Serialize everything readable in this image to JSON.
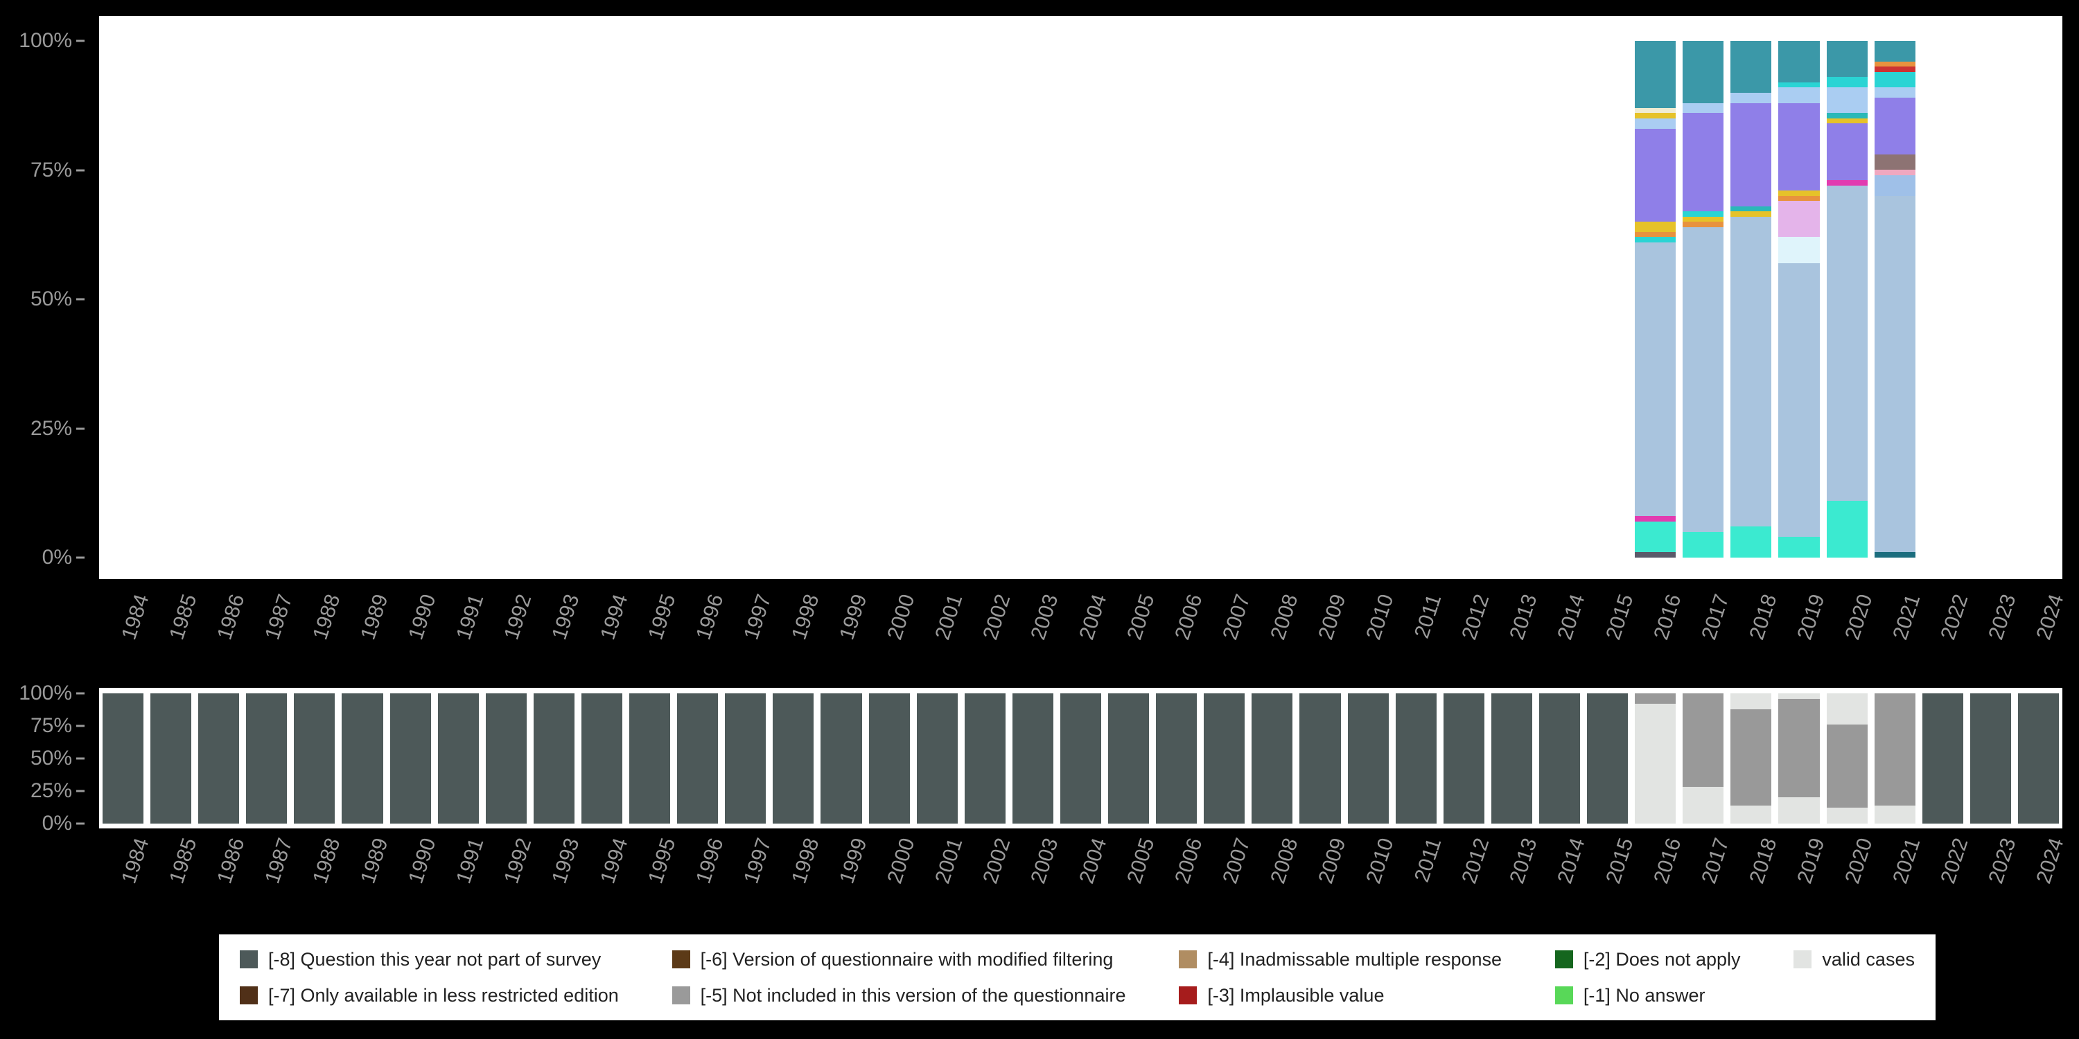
{
  "page": {
    "background": "#000000"
  },
  "chart_data": [
    {
      "type": "bar",
      "stacked": true,
      "units": "percent",
      "ylim": [
        0,
        100
      ],
      "yticks": [
        "100%",
        "75%",
        "50%",
        "25%",
        "0%"
      ],
      "grid": false,
      "segment_order": "top-to-bottom",
      "x": [
        "1984",
        "1985",
        "1986",
        "1987",
        "1988",
        "1989",
        "1990",
        "1991",
        "1992",
        "1993",
        "1994",
        "1995",
        "1996",
        "1997",
        "1998",
        "1999",
        "2000",
        "2001",
        "2002",
        "2003",
        "2004",
        "2005",
        "2006",
        "2007",
        "2008",
        "2009",
        "2010",
        "2011",
        "2012",
        "2013",
        "2014",
        "2015",
        "2016",
        "2017",
        "2018",
        "2019",
        "2020",
        "2021",
        "2022",
        "2023",
        "2024"
      ],
      "bars": {
        "2016": [
          {
            "color": "#3b98a8",
            "value": 13
          },
          {
            "color": "#f0ecd2",
            "value": 1
          },
          {
            "color": "#e6c229",
            "value": 1
          },
          {
            "color": "#aacdf2",
            "value": 2
          },
          {
            "color": "#8f7fe8",
            "value": 18
          },
          {
            "color": "#e6c229",
            "value": 2
          },
          {
            "color": "#e8923e",
            "value": 1
          },
          {
            "color": "#2ad4d4",
            "value": 1
          },
          {
            "color": "#a9c4de",
            "value": 53
          },
          {
            "color": "#e23bb0",
            "value": 1
          },
          {
            "color": "#3bead0",
            "value": 6
          },
          {
            "color": "#5a5a6a",
            "value": 1
          }
        ],
        "2017": [
          {
            "color": "#3b98a8",
            "value": 12
          },
          {
            "color": "#aacdf2",
            "value": 2
          },
          {
            "color": "#8f7fe8",
            "value": 19
          },
          {
            "color": "#2ad4d4",
            "value": 1
          },
          {
            "color": "#e6c229",
            "value": 1
          },
          {
            "color": "#e8923e",
            "value": 1
          },
          {
            "color": "#a9c4de",
            "value": 59
          },
          {
            "color": "#3bead0",
            "value": 5
          }
        ],
        "2018": [
          {
            "color": "#3b98a8",
            "value": 10
          },
          {
            "color": "#aacdf2",
            "value": 2
          },
          {
            "color": "#8f7fe8",
            "value": 20
          },
          {
            "color": "#2ab8b8",
            "value": 1
          },
          {
            "color": "#e6c229",
            "value": 1
          },
          {
            "color": "#a9c4de",
            "value": 60
          },
          {
            "color": "#3bead0",
            "value": 6
          }
        ],
        "2019": [
          {
            "color": "#3b98a8",
            "value": 8
          },
          {
            "color": "#2ad4d4",
            "value": 1
          },
          {
            "color": "#aacdf2",
            "value": 3
          },
          {
            "color": "#8f7fe8",
            "value": 17
          },
          {
            "color": "#e6c229",
            "value": 1
          },
          {
            "color": "#e8923e",
            "value": 1
          },
          {
            "color": "#e4b4ea",
            "value": 7
          },
          {
            "color": "#dff4fb",
            "value": 5
          },
          {
            "color": "#a9c4de",
            "value": 53
          },
          {
            "color": "#3bead0",
            "value": 4
          }
        ],
        "2020": [
          {
            "color": "#3b98a8",
            "value": 7
          },
          {
            "color": "#2ad4d4",
            "value": 2
          },
          {
            "color": "#aacdf2",
            "value": 5
          },
          {
            "color": "#2ab8b8",
            "value": 1
          },
          {
            "color": "#e6c229",
            "value": 1
          },
          {
            "color": "#8f7fe8",
            "value": 11
          },
          {
            "color": "#e23bb0",
            "value": 1
          },
          {
            "color": "#a9c4de",
            "value": 61
          },
          {
            "color": "#3bead0",
            "value": 11
          }
        ],
        "2021": [
          {
            "color": "#3b98a8",
            "value": 4
          },
          {
            "color": "#e8923e",
            "value": 1
          },
          {
            "color": "#cc3333",
            "value": 1
          },
          {
            "color": "#2ad4d4",
            "value": 3
          },
          {
            "color": "#aacdf2",
            "value": 2
          },
          {
            "color": "#8f7fe8",
            "value": 11
          },
          {
            "color": "#8d7373",
            "value": 3
          },
          {
            "color": "#f0a8c0",
            "value": 1
          },
          {
            "color": "#9fc0e8",
            "value": 4
          },
          {
            "color": "#a9c4de",
            "value": 69
          },
          {
            "color": "#1b6d7e",
            "value": 1
          }
        ]
      }
    },
    {
      "type": "bar",
      "stacked": true,
      "units": "percent",
      "ylim": [
        0,
        100
      ],
      "yticks": [
        "100%",
        "75%",
        "50%",
        "25%",
        "0%"
      ],
      "grid": false,
      "segment_order": "top-to-bottom",
      "x": [
        "1984",
        "1985",
        "1986",
        "1987",
        "1988",
        "1989",
        "1990",
        "1991",
        "1992",
        "1993",
        "1994",
        "1995",
        "1996",
        "1997",
        "1998",
        "1999",
        "2000",
        "2001",
        "2002",
        "2003",
        "2004",
        "2005",
        "2006",
        "2007",
        "2008",
        "2009",
        "2010",
        "2011",
        "2012",
        "2013",
        "2014",
        "2015",
        "2016",
        "2017",
        "2018",
        "2019",
        "2020",
        "2021",
        "2022",
        "2023",
        "2024"
      ],
      "default_bar": [
        {
          "label": "[-8] Question this year not part of survey",
          "color": "#4d5959",
          "value": 100
        }
      ],
      "bars": {
        "2016": [
          {
            "label": "[-5] Not included in this version of the questionnaire",
            "color": "#999999",
            "value": 8
          },
          {
            "label": "valid cases",
            "color": "#e2e4e2",
            "value": 92
          }
        ],
        "2017": [
          {
            "label": "[-5] Not included in this version of the questionnaire",
            "color": "#999999",
            "value": 72
          },
          {
            "label": "valid cases",
            "color": "#e2e4e2",
            "value": 28
          }
        ],
        "2018": [
          {
            "label": "valid cases",
            "color": "#e2e4e2",
            "value": 12
          },
          {
            "label": "[-5] Not included in this version of the questionnaire",
            "color": "#999999",
            "value": 74
          },
          {
            "label": "valid cases",
            "color": "#e2e4e2",
            "value": 14
          }
        ],
        "2019": [
          {
            "label": "valid cases",
            "color": "#e2e4e2",
            "value": 4
          },
          {
            "label": "[-5] Not included in this version of the questionnaire",
            "color": "#999999",
            "value": 76
          },
          {
            "label": "valid cases",
            "color": "#e2e4e2",
            "value": 20
          }
        ],
        "2020": [
          {
            "label": "valid cases",
            "color": "#e2e4e2",
            "value": 24
          },
          {
            "label": "[-5] Not included in this version of the questionnaire",
            "color": "#999999",
            "value": 64
          },
          {
            "label": "valid cases",
            "color": "#e2e4e2",
            "value": 12
          }
        ],
        "2021": [
          {
            "label": "[-5] Not included in this version of the questionnaire",
            "color": "#999999",
            "value": 86
          },
          {
            "label": "valid cases",
            "color": "#e2e4e2",
            "value": 14
          }
        ]
      }
    }
  ],
  "legend": {
    "items": [
      {
        "label": "[-8] Question this year not part of survey",
        "color": "#4d5959"
      },
      {
        "label": "[-7] Only available in less restricted edition",
        "color": "#503018"
      },
      {
        "label": "[-6] Version of questionnaire with modified filtering",
        "color": "#5c3a17"
      },
      {
        "label": "[-5] Not included in this version of the questionnaire",
        "color": "#9a9a9a"
      },
      {
        "label": "[-4] Inadmissable multiple response",
        "color": "#b08d62"
      },
      {
        "label": "[-3] Implausible value",
        "color": "#a61c1c"
      },
      {
        "label": "[-2] Does not apply",
        "color": "#15661e"
      },
      {
        "label": "[-1] No answer",
        "color": "#58d858"
      },
      {
        "label": "valid cases",
        "color": "#e2e4e2"
      }
    ]
  }
}
